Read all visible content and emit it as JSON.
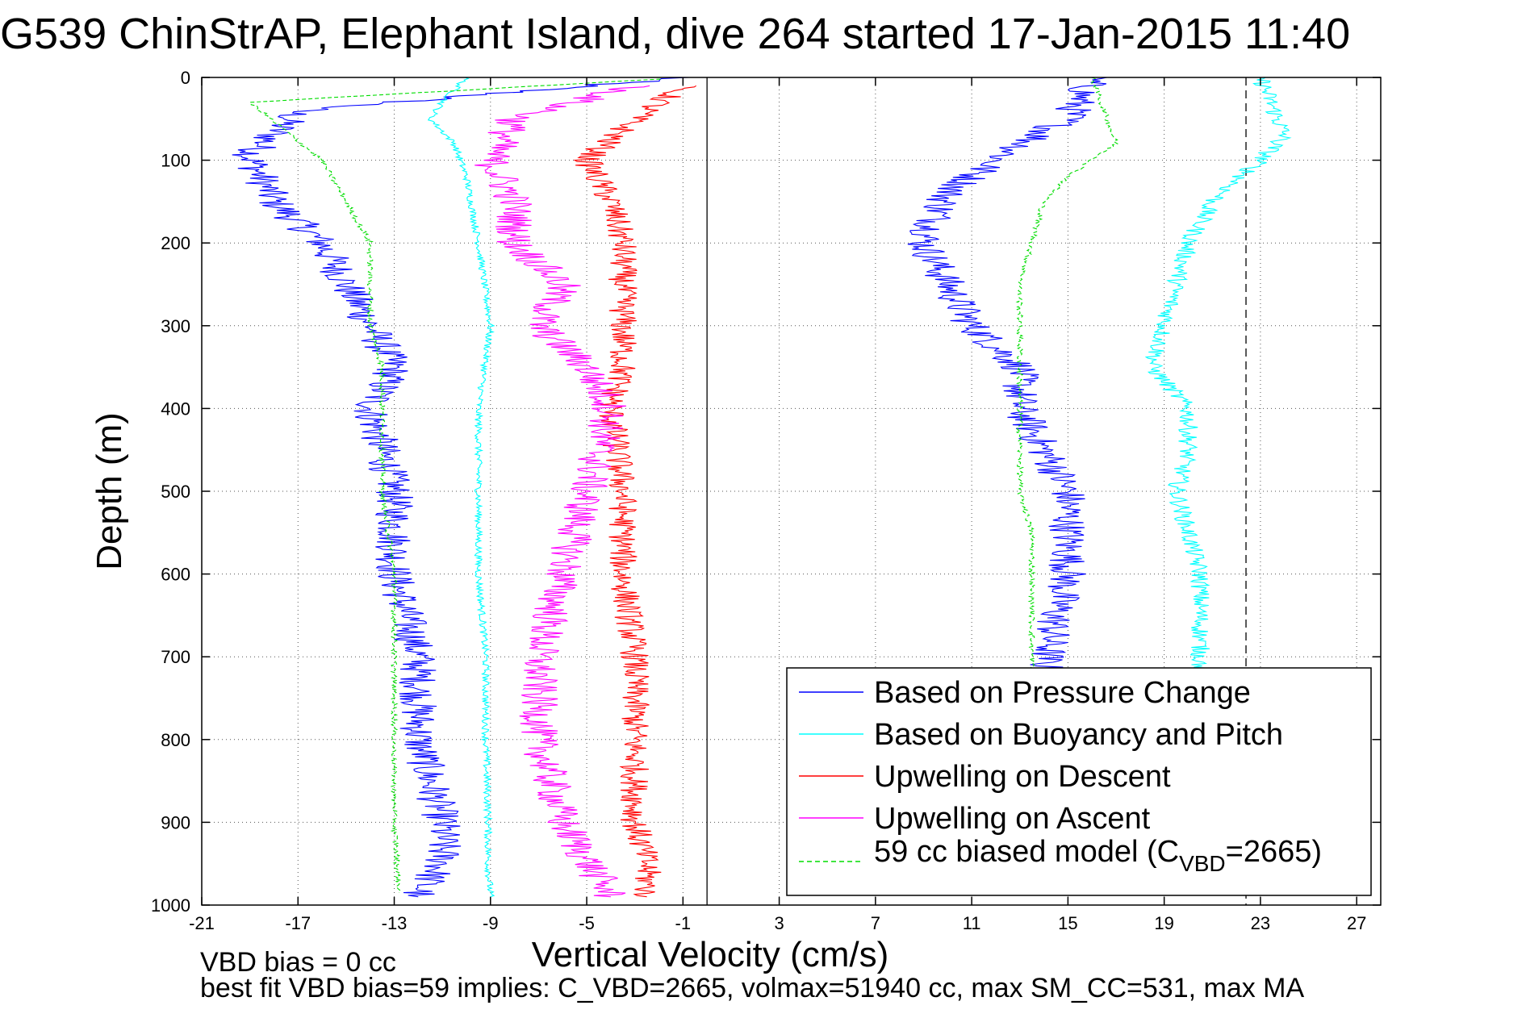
{
  "chart_data": {
    "type": "line",
    "title": "G539 ChinStrAP, Elephant Island, dive 264 started 17-Jan-2015 11:40",
    "xlabel": "Vertical Velocity (cm/s)",
    "ylabel": "Depth (m)",
    "xlim": [
      -21,
      28
    ],
    "ylim": [
      0,
      1000
    ],
    "y_reversed": true,
    "x_ticks": [
      -21,
      -17,
      -13,
      -9,
      -5,
      -1,
      3,
      7,
      11,
      15,
      19,
      23,
      27
    ],
    "y_ticks": [
      0,
      100,
      200,
      300,
      400,
      500,
      600,
      700,
      800,
      900,
      1000
    ],
    "grid": true,
    "legend_position": "bottom-right",
    "legend": [
      {
        "label": "Based on Pressure Change",
        "color": "#0000ff",
        "dash": "solid"
      },
      {
        "label": "Based on Buoyancy and Pitch",
        "color": "#00ffff",
        "dash": "solid"
      },
      {
        "label": "Upwelling on Descent",
        "color": "#ff0000",
        "dash": "solid"
      },
      {
        "label": "Upwelling on Ascent",
        "color": "#ff00ff",
        "dash": "solid"
      },
      {
        "label_prefix": "59 cc biased model (C",
        "label_sub": "VBD",
        "label_suffix": "=2665)",
        "color": "#00dd00",
        "dash": "dashed"
      }
    ],
    "reference_lines": [
      {
        "orientation": "vertical",
        "x": 0,
        "color": "#000000",
        "dash": "solid"
      },
      {
        "orientation": "vertical",
        "x": 22.4,
        "color": "#000000",
        "dash": "dashed"
      }
    ],
    "series": [
      {
        "name": "Based on Pressure Change",
        "color": "#0000ff",
        "phase": "descent",
        "x": [
          -1,
          -17,
          -19,
          -18,
          -16,
          -15,
          -14,
          -13,
          -14,
          -13,
          -13,
          -12,
          -12,
          -11,
          -11,
          -12,
          -12
        ],
        "y": [
          0,
          40,
          95,
          150,
          200,
          250,
          300,
          350,
          400,
          500,
          600,
          700,
          800,
          900,
          950,
          985,
          990
        ],
        "noise": 0.8
      },
      {
        "name": "Based on Pressure Change",
        "color": "#0000ff",
        "phase": "ascent",
        "x": [
          16,
          15,
          12,
          10,
          9,
          10,
          11,
          13,
          13,
          14,
          15,
          15,
          15,
          14.5,
          14
        ],
        "y": [
          0,
          50,
          100,
          140,
          200,
          250,
          300,
          350,
          400,
          450,
          500,
          550,
          600,
          650,
          720
        ],
        "noise": 0.8
      },
      {
        "name": "Based on Buoyancy and Pitch",
        "color": "#00ffff",
        "phase": "descent",
        "x": [
          -10,
          -11,
          -11.5,
          -10.5,
          -10,
          -9.5,
          -9,
          -9.5,
          -9.5,
          -9.5,
          -9.2,
          -9.2,
          -9.1,
          -9.1,
          -9
        ],
        "y": [
          0,
          30,
          50,
          80,
          120,
          200,
          300,
          400,
          500,
          600,
          700,
          800,
          900,
          950,
          990
        ],
        "noise": 0.15
      },
      {
        "name": "Based on Buoyancy and Pitch",
        "color": "#00ffff",
        "phase": "ascent",
        "x": [
          23,
          24,
          23,
          21,
          20,
          19.5,
          19,
          18.5,
          20,
          20,
          19.5,
          20,
          20.5,
          20.5,
          20.5
        ],
        "y": [
          0,
          70,
          100,
          150,
          200,
          250,
          300,
          350,
          400,
          450,
          500,
          550,
          600,
          650,
          720
        ],
        "noise": 0.4
      },
      {
        "name": "Upwelling on Descent",
        "color": "#ff0000",
        "phase": "descent",
        "x": [
          -1,
          -3,
          -5,
          -4,
          -3.5,
          -3.5,
          -3.5,
          -3.5,
          -4,
          -3.5,
          -3.5,
          -3,
          -3,
          -3,
          -2.5,
          -2.5
        ],
        "y": [
          10,
          50,
          100,
          150,
          200,
          250,
          300,
          350,
          400,
          500,
          600,
          700,
          800,
          900,
          950,
          990
        ],
        "noise": 0.6
      },
      {
        "name": "Upwelling on Ascent",
        "color": "#ff00ff",
        "phase": "ascent",
        "x": [
          -3,
          -8,
          -9,
          -8,
          -8,
          -6,
          -7,
          -5,
          -4,
          -5,
          -6,
          -7,
          -7,
          -6,
          -4
        ],
        "y": [
          10,
          50,
          100,
          150,
          200,
          250,
          300,
          350,
          400,
          500,
          600,
          700,
          800,
          900,
          990
        ],
        "noise": 0.8
      },
      {
        "name": "59 cc biased model (C_VBD=2665)",
        "color": "#00dd00",
        "phase": "descent",
        "x": [
          -2,
          -19,
          -16,
          -15,
          -14,
          -14,
          -14,
          -13.5,
          -13.5,
          -13.5,
          -13,
          -13,
          -13,
          -13,
          -12.8
        ],
        "y": [
          2,
          30,
          100,
          150,
          200,
          250,
          300,
          350,
          400,
          500,
          600,
          700,
          800,
          900,
          985
        ],
        "noise": 0.12
      },
      {
        "name": "59 cc biased model (C_VBD=2665)",
        "color": "#00dd00",
        "phase": "ascent",
        "x": [
          16,
          17,
          15,
          14,
          13.5,
          13,
          13,
          13,
          13,
          13,
          13,
          13.5,
          13.5,
          13.5
        ],
        "y": [
          0,
          80,
          120,
          150,
          200,
          250,
          300,
          350,
          400,
          450,
          500,
          550,
          600,
          720
        ],
        "noise": 0.12
      }
    ]
  },
  "footer": {
    "line1": "VBD bias = 0 cc",
    "line2": "best fit VBD bias=59 implies: C_VBD=2665, volmax=51940 cc, max SM_CC=531, max MA"
  }
}
